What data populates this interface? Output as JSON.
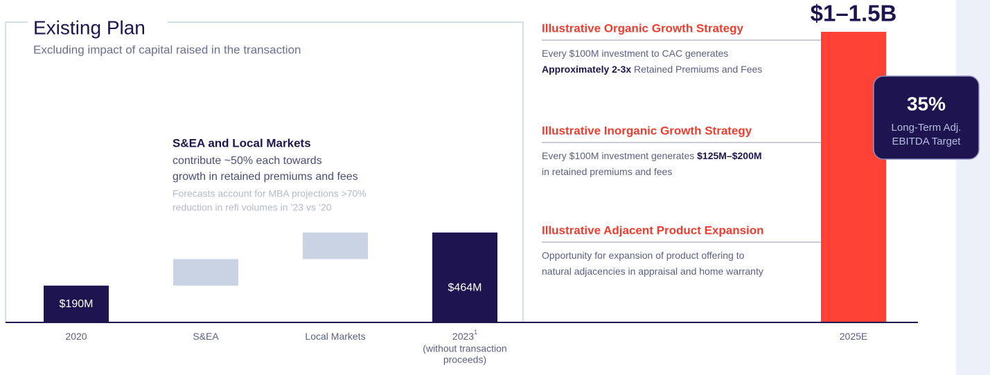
{
  "chart_data": {
    "type": "waterfall",
    "title": "Existing Plan",
    "subtitle": "Excluding impact of capital raised in the transaction",
    "categories": [
      "2020",
      "S&EA",
      "Local Markets",
      "2023",
      "2025E"
    ],
    "category_footnotes": [
      null,
      null,
      null,
      "1",
      null
    ],
    "category_sublabels": [
      null,
      null,
      null,
      [
        "(without transaction",
        "proceeds)"
      ],
      null
    ],
    "values": [
      190,
      137,
      137,
      464,
      1500
    ],
    "value_labels": [
      "$190M",
      null,
      null,
      "$464M",
      "$1–1.5B"
    ],
    "totals": [
      true,
      false,
      false,
      true,
      true
    ],
    "colors": [
      "#1e1550",
      "#cad3e3",
      "#cad3e3",
      "#1e1550",
      "#ff4136"
    ],
    "ylim": [
      0,
      1500
    ],
    "annotation": {
      "heading": "S&EA and Local Markets",
      "lines": [
        "contribute ~50% each towards",
        "growth in retained premiums and fees"
      ],
      "notes": [
        "Forecasts account for MBA projections >70%",
        "reduction in refi volumes in ’23 vs ‘20"
      ]
    },
    "strategies": [
      {
        "title": "Illustrative Organic Growth Strategy",
        "description": [
          [
            {
              "text": "Every $100M investment to CAC generates",
              "bold": false
            }
          ],
          [
            {
              "text": "Approximately 2-3x",
              "bold": true
            },
            {
              "text": " Retained Premiums and Fees",
              "bold": false
            }
          ]
        ]
      },
      {
        "title": "Illustrative Inorganic Growth Strategy",
        "description": [
          [
            {
              "text": "Every $100M investment generates ",
              "bold": false
            },
            {
              "text": "$125M–$200M",
              "bold": true
            }
          ],
          [
            {
              "text": "in retained premiums and fees",
              "bold": false
            }
          ]
        ]
      },
      {
        "title": "Illustrative Adjacent Product Expansion",
        "description": [
          [
            {
              "text": "Opportunity for expansion of product offering to",
              "bold": false
            }
          ],
          [
            {
              "text": "natural adjacencies in appraisal and home warranty",
              "bold": false
            }
          ]
        ]
      }
    ],
    "badge": {
      "value_label": "35%",
      "lines": [
        "Long-Term Adj.",
        "EBITDA Target"
      ]
    }
  }
}
